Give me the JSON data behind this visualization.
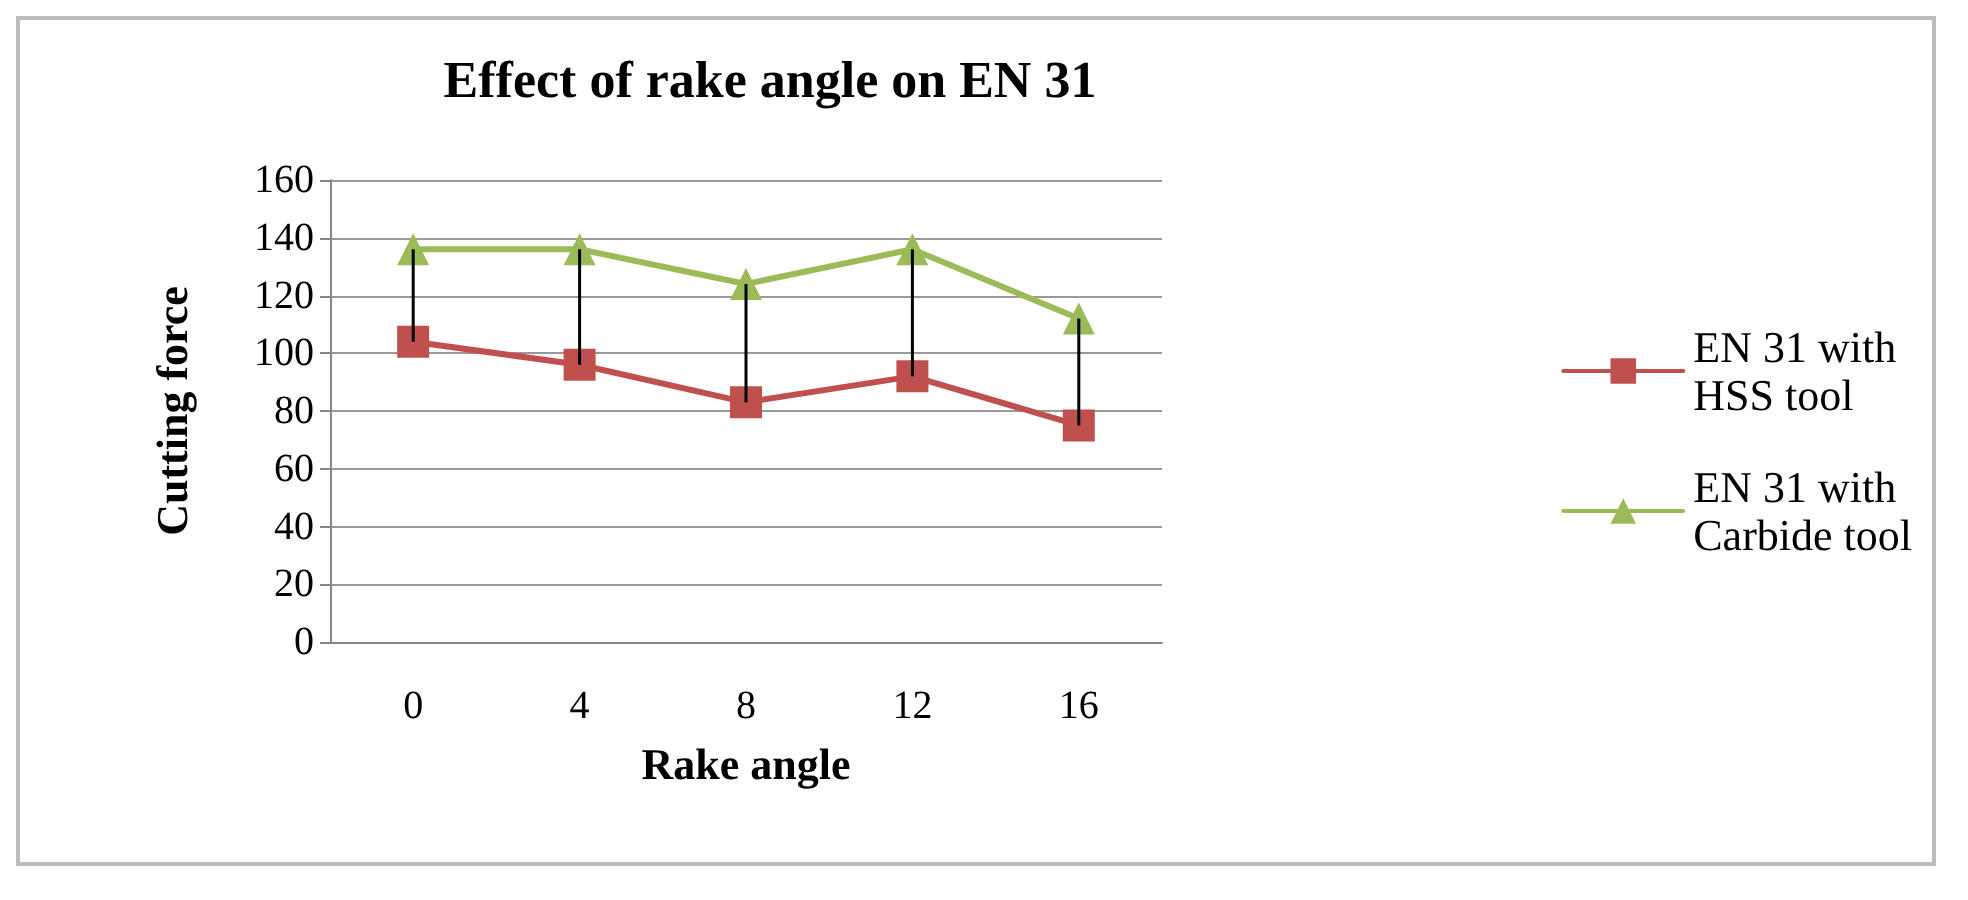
{
  "chart_data": {
    "type": "line",
    "title": "Effect of rake angle on EN 31",
    "xlabel": "Rake angle",
    "ylabel": "Cutting force",
    "categories": [
      "0",
      "4",
      "8",
      "12",
      "16"
    ],
    "series": [
      {
        "name": "EN 31 with\nHSS tool",
        "color": "#c0504d",
        "marker": "square",
        "values": [
          104,
          96,
          83,
          92,
          75
        ],
        "errors": [
          [
            104,
            136
          ],
          [
            96,
            136
          ],
          [
            83,
            124
          ],
          [
            92,
            136
          ],
          [
            75,
            112
          ]
        ]
      },
      {
        "name": "EN 31 with\nCarbide tool",
        "color": "#9bbb59",
        "marker": "triangle",
        "values": [
          136,
          136,
          124,
          136,
          112
        ]
      }
    ],
    "ylim": [
      0,
      160
    ],
    "yticks": [
      0,
      20,
      40,
      60,
      80,
      100,
      120,
      140,
      160
    ],
    "grid": "y",
    "legend": "right"
  }
}
